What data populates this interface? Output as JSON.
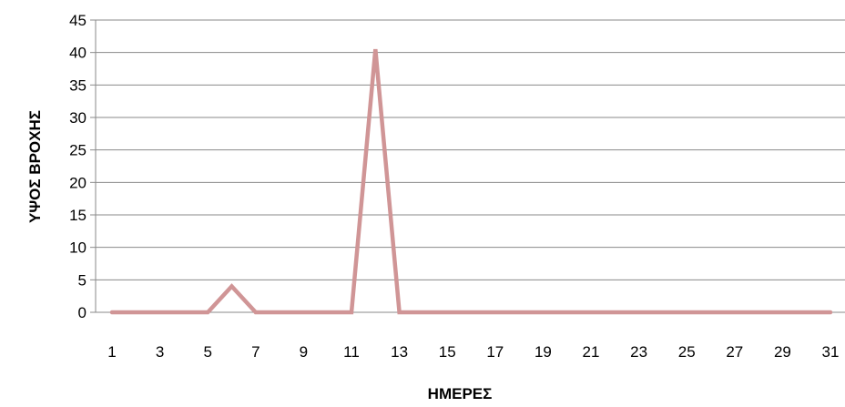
{
  "chart_data": {
    "type": "line",
    "title": "",
    "xlabel": "ΗΜΕΡΕΣ",
    "ylabel": "ΥΨΟΣ ΒΡΟΧΗΣ",
    "x": [
      1,
      2,
      3,
      4,
      5,
      6,
      7,
      8,
      9,
      10,
      11,
      12,
      13,
      14,
      15,
      16,
      17,
      18,
      19,
      20,
      21,
      22,
      23,
      24,
      25,
      26,
      27,
      28,
      29,
      30,
      31
    ],
    "x_tick_labels": [
      "1",
      "3",
      "5",
      "7",
      "9",
      "11",
      "13",
      "15",
      "17",
      "19",
      "21",
      "23",
      "25",
      "27",
      "29",
      "31"
    ],
    "series": [
      {
        "values": [
          0,
          0,
          0,
          0,
          0,
          4,
          0,
          0,
          0,
          0,
          0,
          40.5,
          0,
          0,
          0,
          0,
          0,
          0,
          0,
          0,
          0,
          0,
          0,
          0,
          0,
          0,
          0,
          0,
          0,
          0,
          0
        ]
      }
    ],
    "ylim": [
      0,
      45
    ],
    "y_ticks": [
      0,
      5,
      10,
      15,
      20,
      25,
      30,
      35,
      40,
      45
    ],
    "grid": true,
    "legend": "none",
    "colors": {
      "series": "#d09596",
      "grid": "#8a8a8a",
      "axis": "#8a8a8a"
    }
  }
}
